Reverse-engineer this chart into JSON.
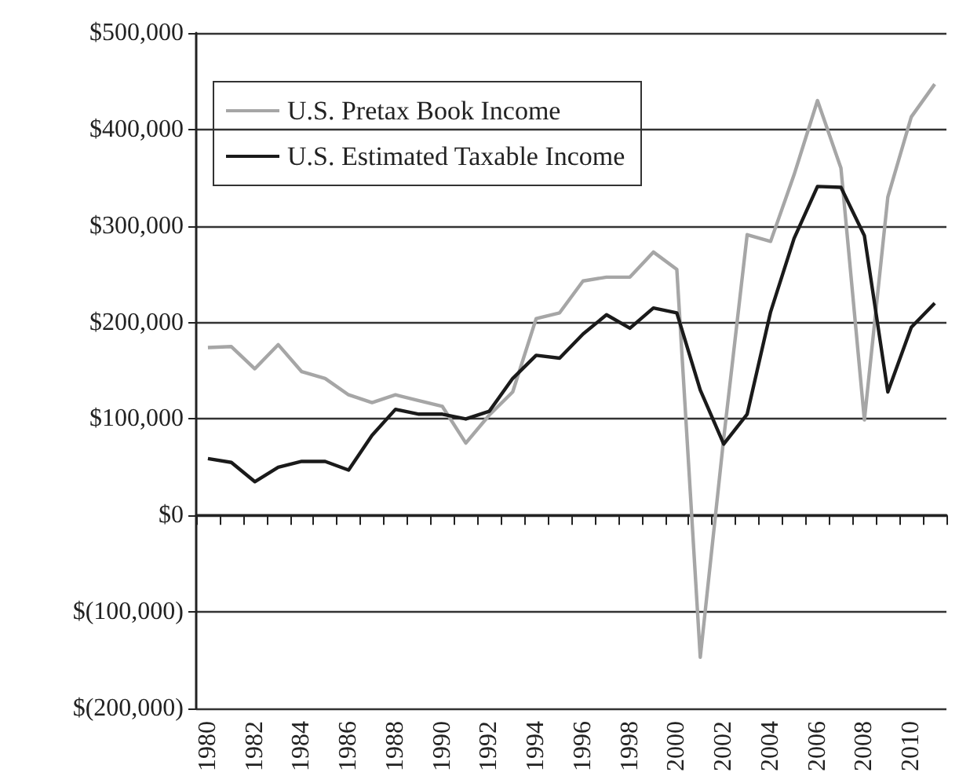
{
  "chart_data": {
    "type": "line",
    "categories": [
      "1980",
      null,
      "1982",
      null,
      "1984",
      null,
      "1986",
      null,
      "1988",
      null,
      "1990",
      null,
      "1992",
      null,
      "1994",
      null,
      "1996",
      null,
      "1998",
      null,
      "2000",
      null,
      "2002",
      null,
      "2004",
      null,
      "2006",
      null,
      "2008",
      null,
      "2010",
      null
    ],
    "series": [
      {
        "name": "U.S. Pretax Book Income",
        "color": "#a6a6a6",
        "values": [
          174000,
          175000,
          152000,
          177000,
          149000,
          142000,
          125000,
          117000,
          125000,
          119000,
          113000,
          75000,
          104000,
          128000,
          204000,
          210000,
          243000,
          247000,
          247000,
          273000,
          255000,
          -147000,
          80000,
          291000,
          284000,
          353000,
          430000,
          360000,
          99000,
          330000,
          413000,
          447000
        ]
      },
      {
        "name": "U.S. Estimated Taxable Income",
        "color": "#1a1a1a",
        "values": [
          59000,
          55000,
          35000,
          50000,
          56000,
          56000,
          47000,
          83000,
          110000,
          105000,
          105000,
          100000,
          108000,
          142000,
          166000,
          163000,
          188000,
          208000,
          194000,
          215000,
          210000,
          130000,
          74000,
          105000,
          211000,
          287000,
          341000,
          340000,
          290000,
          128000,
          195000,
          220000
        ]
      }
    ],
    "ylim": [
      -200000,
      500000
    ],
    "yticks": [
      {
        "value": -200000,
        "label": "$(200,000)"
      },
      {
        "value": -100000,
        "label": "$(100,000)"
      },
      {
        "value": 0,
        "label": "$0"
      },
      {
        "value": 100000,
        "label": "$100,000"
      },
      {
        "value": 200000,
        "label": "$200,000"
      },
      {
        "value": 300000,
        "label": "$300,000"
      },
      {
        "value": 400000,
        "label": "$400,000"
      },
      {
        "value": 500000,
        "label": "$500,000"
      }
    ],
    "grid": "y",
    "legend": "top left",
    "marker": "none",
    "line_style": "solid"
  }
}
